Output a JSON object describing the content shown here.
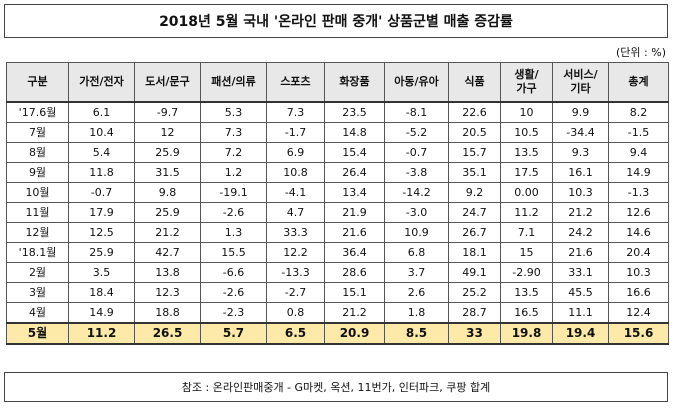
{
  "title": "2018년 5월 국내 '온라인 판매 중개' 상품군별 매출 증감률",
  "unit": "(단위 : %)",
  "headers": [
    "구분",
    "가전/전자",
    "도서/문구",
    "패션/의류",
    "스포츠",
    "화장품",
    "아동/유아",
    "식품",
    "생활/가구",
    "서비스/기타",
    "총계"
  ],
  "rows": [
    {
      "label": "'17.6월",
      "values": [
        "6.1",
        "-9.7",
        "5.3",
        "7.3",
        "23.5",
        "-8.1",
        "22.6",
        "10",
        "9.9",
        "8.2"
      ]
    },
    {
      "label": "7월",
      "values": [
        "10.4",
        "12",
        "7.3",
        "-1.7",
        "14.8",
        "-5.2",
        "20.5",
        "10.5",
        "-34.4",
        "-1.5"
      ]
    },
    {
      "label": "8월",
      "values": [
        "5.4",
        "25.9",
        "7.2",
        "6.9",
        "15.4",
        "-0.7",
        "15.7",
        "13.5",
        "9.3",
        "9.4"
      ]
    },
    {
      "label": "9월",
      "values": [
        "11.8",
        "31.5",
        "1.2",
        "10.8",
        "26.4",
        "-3.8",
        "35.1",
        "17.5",
        "16.1",
        "14.9"
      ]
    },
    {
      "label": "10월",
      "values": [
        "-0.7",
        "9.8",
        "-19.1",
        "-4.1",
        "13.4",
        "-14.2",
        "9.2",
        "0.00",
        "10.3",
        "-1.3"
      ]
    },
    {
      "label": "11월",
      "values": [
        "17.9",
        "25.9",
        "-2.6",
        "4.7",
        "21.9",
        "-3.0",
        "24.7",
        "11.2",
        "21.2",
        "12.6"
      ]
    },
    {
      "label": "12월",
      "values": [
        "12.5",
        "21.2",
        "1.3",
        "33.3",
        "21.6",
        "10.9",
        "26.7",
        "7.1",
        "24.2",
        "14.6"
      ]
    },
    {
      "label": "'18.1월",
      "values": [
        "25.9",
        "42.7",
        "15.5",
        "12.2",
        "36.4",
        "6.8",
        "18.1",
        "15",
        "21.6",
        "20.4"
      ]
    },
    {
      "label": "2월",
      "values": [
        "3.5",
        "13.8",
        "-6.6",
        "-13.3",
        "28.6",
        "3.7",
        "49.1",
        "-2.90",
        "33.1",
        "10.3"
      ]
    },
    {
      "label": "3월",
      "values": [
        "18.4",
        "12.3",
        "-2.6",
        "-2.7",
        "15.1",
        "2.6",
        "25.2",
        "13.5",
        "45.5",
        "16.6"
      ]
    },
    {
      "label": "4월",
      "values": [
        "14.9",
        "18.8",
        "-2.3",
        "0.8",
        "21.2",
        "1.8",
        "28.7",
        "16.5",
        "11.1",
        "12.4"
      ]
    },
    {
      "label": "5월",
      "values": [
        "11.2",
        "26.5",
        "5.7",
        "6.5",
        "20.9",
        "8.5",
        "33",
        "19.8",
        "19.4",
        "15.6"
      ]
    }
  ],
  "footer": "참조 : 온라인판매중개 - G마켓, 옥션, 11번가, 인터파크, 쿠팡 합계",
  "colors": {
    "header_bg": "#e8e8e8",
    "highlight_bg": "#fde9a8"
  }
}
